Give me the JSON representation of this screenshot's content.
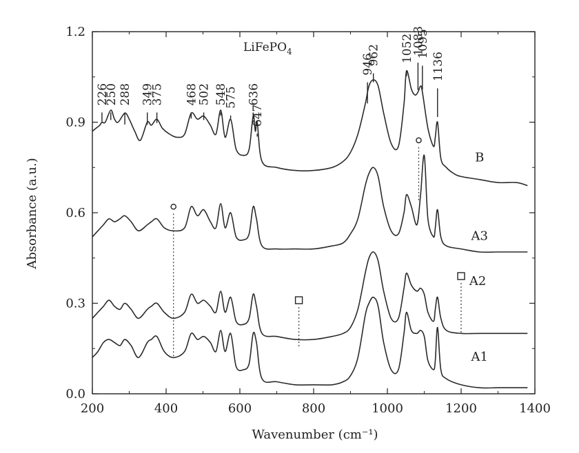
{
  "chart_data": {
    "type": "line",
    "title": "",
    "xlabel": "Wavenumber (cm⁻¹)",
    "ylabel": "Absorbance (a.u.)",
    "xlim": [
      200,
      1400
    ],
    "ylim": [
      0.0,
      1.2
    ],
    "xticks": [
      "200",
      "400",
      "600",
      "800",
      "1000",
      "1200",
      "1400"
    ],
    "yticks": [
      "0.0",
      "0.3",
      "0.6",
      "0.9",
      "1.2"
    ],
    "grid": false,
    "annotation_compound": {
      "base": "LiFePO",
      "sub": "4"
    },
    "peak_labels": [
      "226",
      "250",
      "288",
      "349",
      "375",
      "468",
      "502",
      "548",
      "575",
      "636",
      "647",
      "946",
      "962",
      "1052",
      "1083",
      "1095",
      "1136"
    ],
    "series": [
      {
        "name": "B",
        "x": [
          200,
          210,
          220,
          226,
          235,
          250,
          260,
          270,
          288,
          300,
          315,
          330,
          349,
          360,
          375,
          390,
          410,
          430,
          450,
          468,
          485,
          502,
          520,
          535,
          548,
          560,
          575,
          590,
          610,
          625,
          636,
          642,
          647,
          660,
          700,
          750,
          800,
          850,
          880,
          900,
          920,
          940,
          950,
          962,
          975,
          990,
          1010,
          1030,
          1045,
          1052,
          1065,
          1075,
          1083,
          1090,
          1095,
          1110,
          1125,
          1130,
          1136,
          1145,
          1160,
          1180,
          1200,
          1250,
          1300,
          1350,
          1380
        ],
        "y": [
          0.87,
          0.88,
          0.89,
          0.9,
          0.9,
          0.94,
          0.91,
          0.9,
          0.93,
          0.91,
          0.87,
          0.84,
          0.9,
          0.89,
          0.91,
          0.88,
          0.86,
          0.85,
          0.86,
          0.93,
          0.91,
          0.92,
          0.89,
          0.86,
          0.94,
          0.85,
          0.91,
          0.81,
          0.79,
          0.81,
          0.92,
          0.87,
          0.9,
          0.77,
          0.75,
          0.74,
          0.74,
          0.75,
          0.77,
          0.8,
          0.86,
          0.96,
          1.02,
          1.04,
          1.02,
          0.93,
          0.83,
          0.82,
          0.96,
          1.07,
          1.01,
          0.99,
          1.0,
          1.02,
          1.0,
          0.88,
          0.82,
          0.85,
          0.9,
          0.78,
          0.75,
          0.73,
          0.72,
          0.71,
          0.7,
          0.7,
          0.69
        ]
      },
      {
        "name": "A3",
        "x": [
          200,
          215,
          230,
          245,
          260,
          275,
          288,
          305,
          325,
          349,
          360,
          375,
          395,
          420,
          450,
          468,
          485,
          502,
          520,
          535,
          548,
          560,
          575,
          590,
          610,
          625,
          636,
          645,
          660,
          700,
          750,
          800,
          850,
          880,
          900,
          920,
          940,
          950,
          962,
          975,
          990,
          1010,
          1030,
          1045,
          1052,
          1065,
          1080,
          1090,
          1100,
          1110,
          1125,
          1130,
          1136,
          1145,
          1160,
          1200,
          1250,
          1300,
          1350,
          1380
        ],
        "y": [
          0.52,
          0.54,
          0.56,
          0.58,
          0.57,
          0.58,
          0.59,
          0.57,
          0.54,
          0.56,
          0.57,
          0.58,
          0.55,
          0.54,
          0.55,
          0.62,
          0.59,
          0.61,
          0.57,
          0.55,
          0.63,
          0.55,
          0.6,
          0.52,
          0.51,
          0.53,
          0.62,
          0.58,
          0.49,
          0.48,
          0.48,
          0.48,
          0.49,
          0.5,
          0.53,
          0.58,
          0.69,
          0.73,
          0.75,
          0.72,
          0.62,
          0.54,
          0.53,
          0.6,
          0.66,
          0.62,
          0.56,
          0.66,
          0.79,
          0.58,
          0.52,
          0.55,
          0.61,
          0.52,
          0.49,
          0.48,
          0.47,
          0.47,
          0.47,
          0.47
        ]
      },
      {
        "name": "A2",
        "x": [
          200,
          215,
          230,
          245,
          260,
          275,
          288,
          305,
          325,
          349,
          360,
          375,
          395,
          420,
          450,
          468,
          485,
          502,
          520,
          535,
          548,
          560,
          575,
          590,
          610,
          625,
          636,
          645,
          660,
          700,
          750,
          800,
          850,
          880,
          900,
          920,
          940,
          950,
          962,
          975,
          990,
          1010,
          1030,
          1045,
          1052,
          1065,
          1080,
          1090,
          1100,
          1110,
          1125,
          1130,
          1136,
          1145,
          1160,
          1200,
          1250,
          1300,
          1350,
          1380
        ],
        "y": [
          0.25,
          0.27,
          0.29,
          0.31,
          0.29,
          0.28,
          0.3,
          0.28,
          0.25,
          0.28,
          0.29,
          0.3,
          0.27,
          0.25,
          0.27,
          0.33,
          0.3,
          0.31,
          0.29,
          0.27,
          0.34,
          0.27,
          0.32,
          0.24,
          0.23,
          0.25,
          0.33,
          0.29,
          0.2,
          0.19,
          0.18,
          0.18,
          0.19,
          0.2,
          0.22,
          0.28,
          0.4,
          0.45,
          0.47,
          0.44,
          0.34,
          0.25,
          0.25,
          0.35,
          0.4,
          0.36,
          0.34,
          0.35,
          0.33,
          0.27,
          0.24,
          0.28,
          0.32,
          0.25,
          0.21,
          0.2,
          0.2,
          0.2,
          0.2,
          0.2
        ]
      },
      {
        "name": "A1",
        "x": [
          200,
          215,
          230,
          245,
          260,
          275,
          288,
          305,
          325,
          349,
          360,
          375,
          395,
          420,
          450,
          468,
          485,
          502,
          520,
          535,
          548,
          560,
          575,
          590,
          610,
          625,
          636,
          645,
          660,
          700,
          750,
          800,
          850,
          880,
          900,
          920,
          940,
          950,
          962,
          975,
          990,
          1010,
          1030,
          1045,
          1052,
          1065,
          1080,
          1090,
          1100,
          1110,
          1125,
          1130,
          1136,
          1145,
          1160,
          1200,
          1250,
          1300,
          1350,
          1380
        ],
        "y": [
          0.12,
          0.14,
          0.17,
          0.18,
          0.17,
          0.16,
          0.18,
          0.16,
          0.12,
          0.17,
          0.18,
          0.19,
          0.14,
          0.12,
          0.14,
          0.2,
          0.18,
          0.19,
          0.17,
          0.14,
          0.21,
          0.14,
          0.2,
          0.09,
          0.08,
          0.1,
          0.2,
          0.17,
          0.05,
          0.04,
          0.03,
          0.03,
          0.03,
          0.04,
          0.06,
          0.12,
          0.26,
          0.3,
          0.32,
          0.29,
          0.17,
          0.08,
          0.08,
          0.2,
          0.27,
          0.21,
          0.2,
          0.21,
          0.19,
          0.11,
          0.08,
          0.11,
          0.22,
          0.08,
          0.05,
          0.03,
          0.02,
          0.02,
          0.02,
          0.02
        ]
      }
    ],
    "series_label_positions": [
      {
        "name": "B",
        "x": 1250,
        "y": 0.77
      },
      {
        "name": "A3",
        "x": 1250,
        "y": 0.51
      },
      {
        "name": "A2",
        "x": 1245,
        "y": 0.36
      },
      {
        "name": "A1",
        "x": 1250,
        "y": 0.11
      }
    ],
    "markers": [
      {
        "shape": "circle",
        "x": 420,
        "y_top": 0.62,
        "y_bottom": 0.12
      },
      {
        "shape": "square",
        "x": 760,
        "y_top": 0.31,
        "y_bottom": 0.15
      },
      {
        "shape": "circle",
        "x": 1085,
        "y_top": 0.84,
        "y_bottom": 0.64
      },
      {
        "shape": "square",
        "x": 1200,
        "y_top": 0.39,
        "y_bottom": 0.2
      }
    ]
  }
}
